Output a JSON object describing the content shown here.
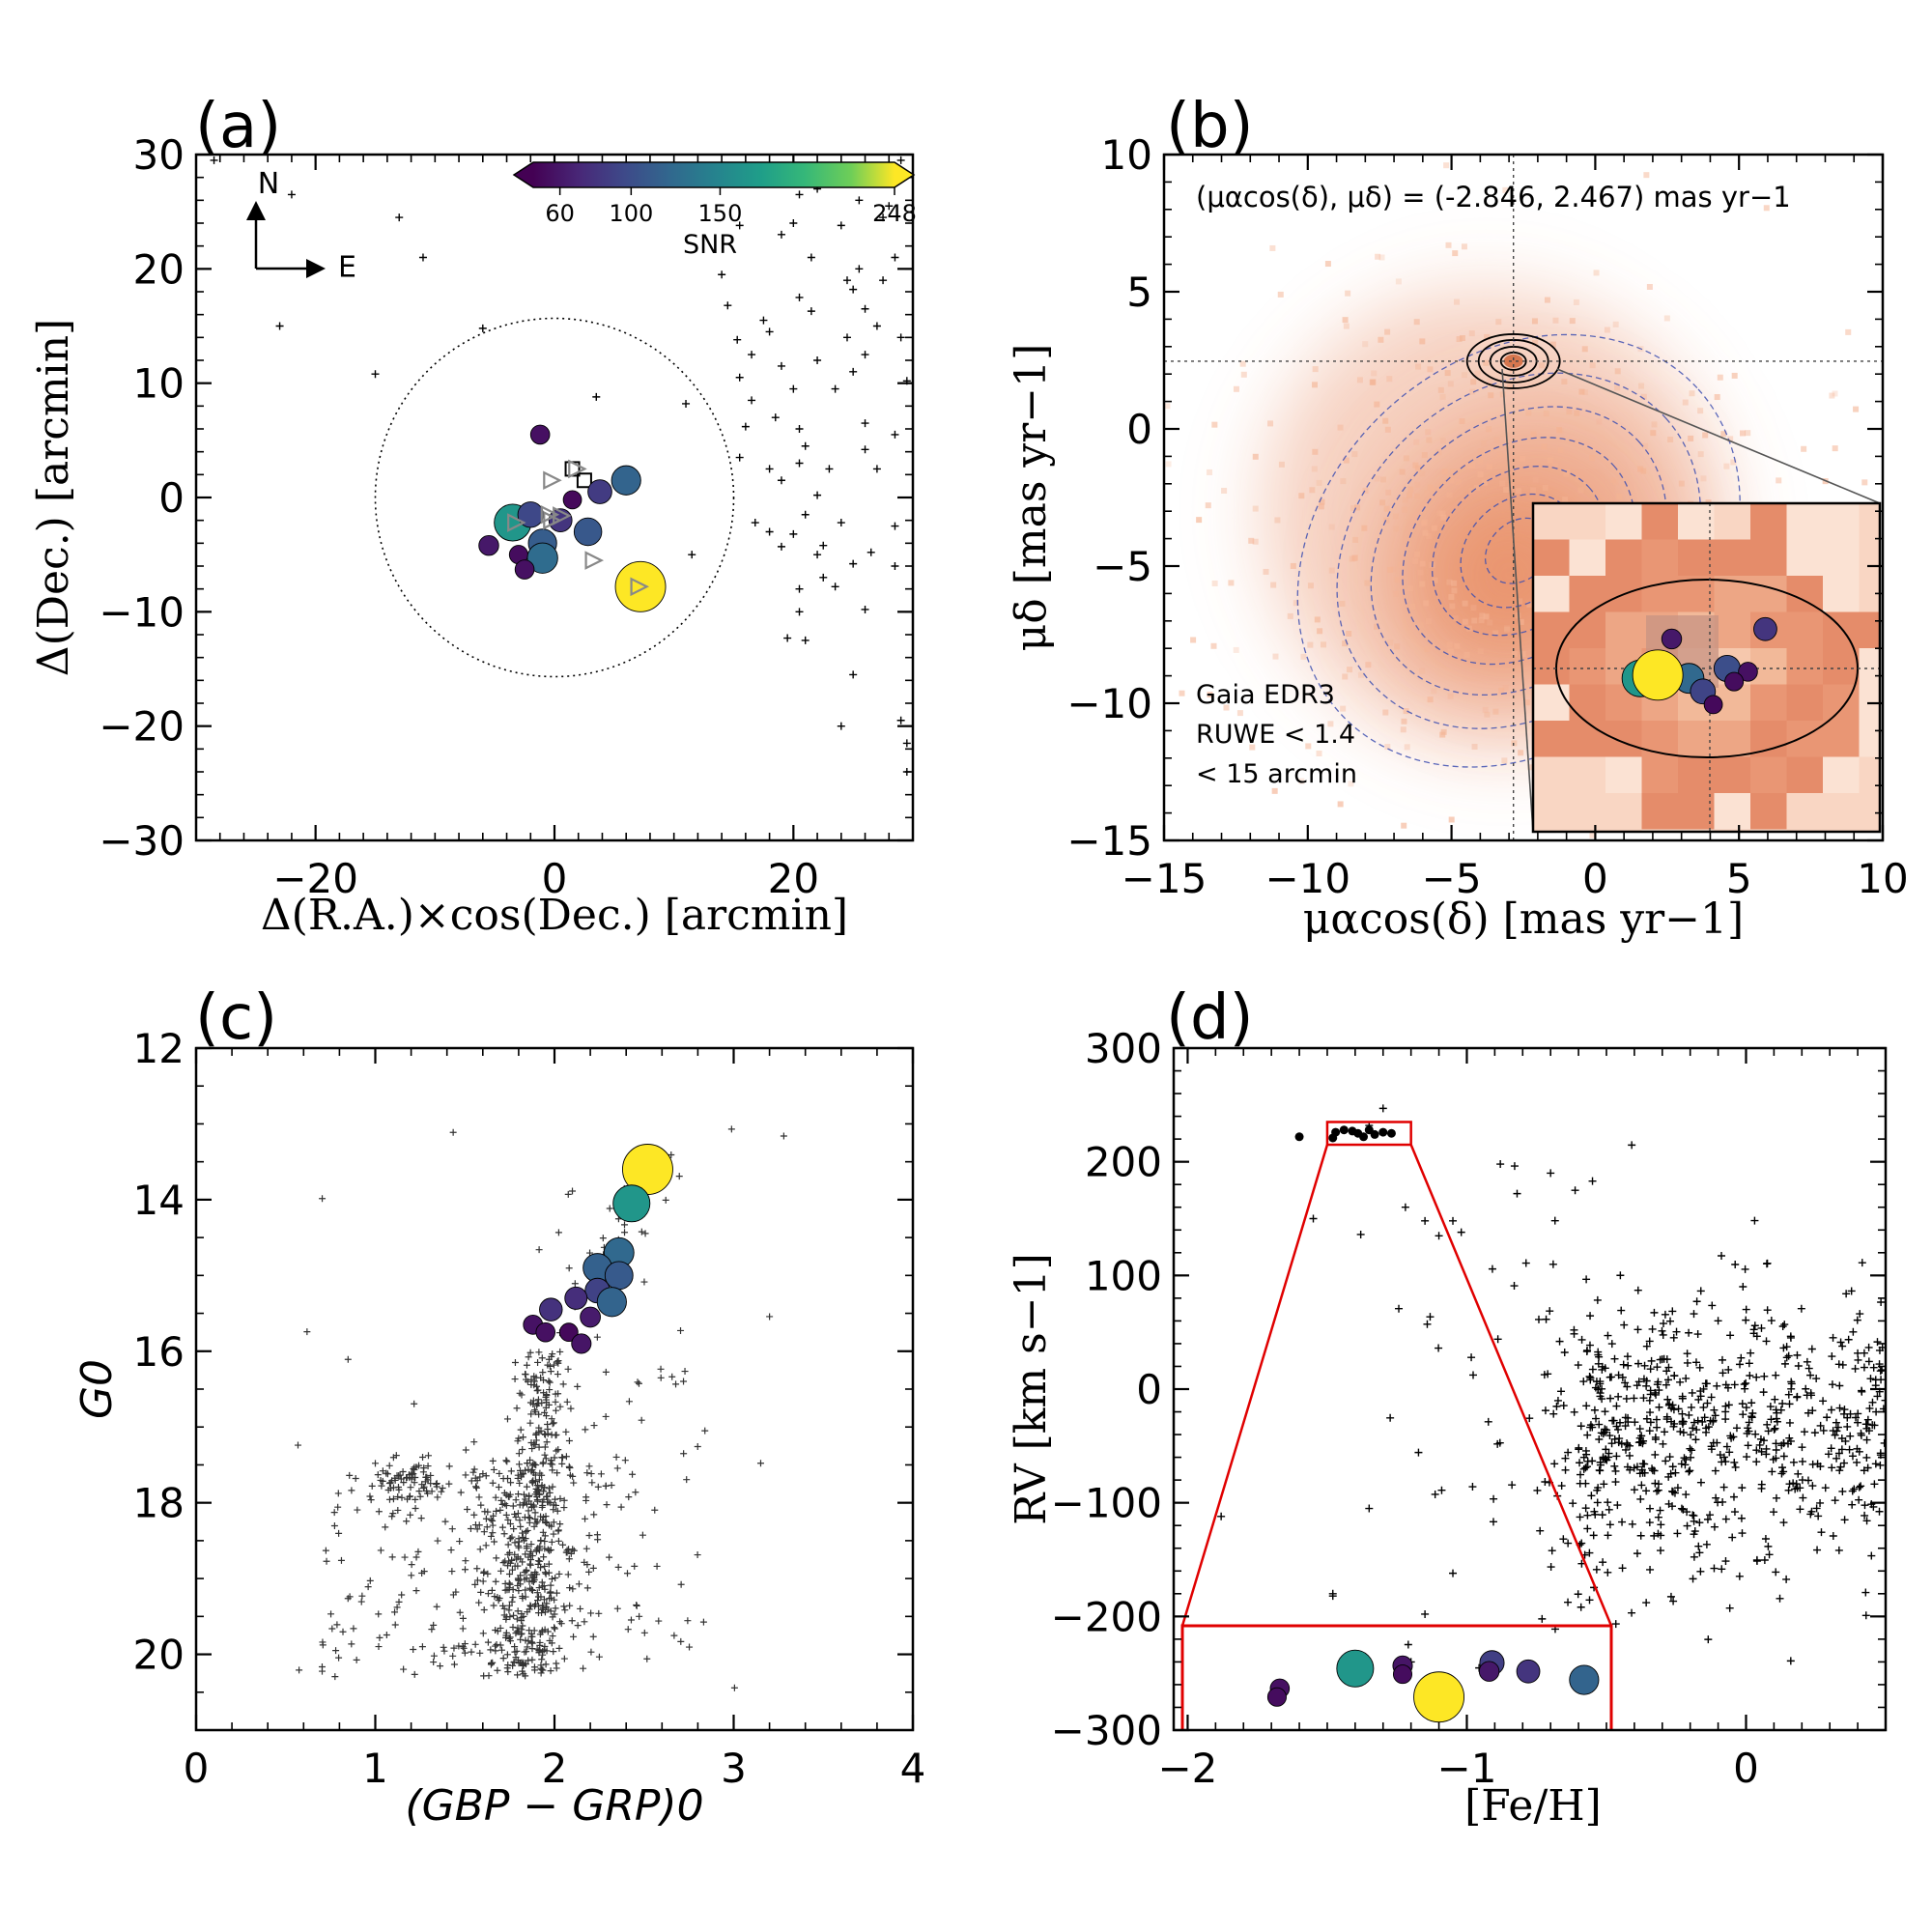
{
  "chart_data": [
    {
      "panel": "(a)",
      "type": "scatter",
      "xlabel": "Δ(R.A.)×cos(Dec.) [arcmin]",
      "ylabel": "Δ(Dec.) [arcmin]",
      "xlim": [
        -30,
        30
      ],
      "ylim": [
        -30,
        30
      ],
      "xticks": [
        "−20",
        "0",
        "20"
      ],
      "yticks": [
        "30",
        "20",
        "10",
        "0",
        "−10",
        "−20",
        "−30"
      ],
      "compass": {
        "north": "N",
        "east": "E"
      },
      "circle_radius_arcmin": 15,
      "colorbar": {
        "label": "SNR",
        "tick_labels": [
          "60",
          "100",
          "150",
          "248"
        ],
        "ticks": [
          60,
          100,
          150,
          248
        ],
        "min": 45,
        "max": 248
      },
      "members": [
        {
          "x": -1.2,
          "y": 5.5,
          "snr": 55
        },
        {
          "x": 6.0,
          "y": 1.5,
          "snr": 118
        },
        {
          "x": -3.5,
          "y": -2.2,
          "snr": 165
        },
        {
          "x": -2.0,
          "y": -1.5,
          "snr": 95
        },
        {
          "x": 1.5,
          "y": -0.2,
          "snr": 50
        },
        {
          "x": 3.8,
          "y": 0.5,
          "snr": 85
        },
        {
          "x": 0.5,
          "y": -2.0,
          "snr": 80
        },
        {
          "x": 2.8,
          "y": -3.0,
          "snr": 108
        },
        {
          "x": -1.0,
          "y": -4.0,
          "snr": 112
        },
        {
          "x": -5.5,
          "y": -4.2,
          "snr": 60
        },
        {
          "x": -3.0,
          "y": -5.0,
          "snr": 52
        },
        {
          "x": -1.0,
          "y": -5.3,
          "snr": 125
        },
        {
          "x": -2.5,
          "y": -6.3,
          "snr": 55
        },
        {
          "x": 7.2,
          "y": -7.8,
          "snr": 248
        }
      ],
      "triangles": [
        [
          -0.3,
          1.5
        ],
        [
          1.8,
          2.5
        ],
        [
          -0.5,
          -1.5
        ],
        [
          0.5,
          -1.6
        ],
        [
          -0.3,
          -2.0
        ],
        [
          3.2,
          -5.5
        ],
        [
          7.0,
          -7.8
        ],
        [
          -3.3,
          -2.2
        ]
      ],
      "squares": [
        [
          1.5,
          2.5
        ],
        [
          2.5,
          1.5
        ]
      ],
      "field": [
        [
          -28.5,
          29.5
        ],
        [
          -22,
          26.5
        ],
        [
          -13,
          24.5
        ],
        [
          -11,
          21
        ],
        [
          -23,
          15
        ],
        [
          -15,
          10.8
        ],
        [
          -6,
          14.8
        ],
        [
          3.5,
          8.8
        ],
        [
          11,
          8.2
        ],
        [
          11.5,
          -5
        ],
        [
          13.2,
          28
        ],
        [
          14,
          19.5
        ],
        [
          15.5,
          23.8
        ],
        [
          19,
          23
        ],
        [
          20,
          24
        ],
        [
          20.5,
          26.5
        ],
        [
          21.5,
          21
        ],
        [
          22,
          27
        ],
        [
          24,
          23.8
        ],
        [
          25.5,
          26
        ],
        [
          26,
          28.2
        ],
        [
          27.5,
          24.5
        ],
        [
          28,
          25.5
        ],
        [
          29,
          29.5
        ],
        [
          24.5,
          19
        ],
        [
          25,
          18.2
        ],
        [
          25.5,
          20
        ],
        [
          26,
          16.5
        ],
        [
          27,
          15
        ],
        [
          27.5,
          19
        ],
        [
          28.5,
          21
        ],
        [
          24.5,
          14
        ],
        [
          26,
          12.5
        ],
        [
          25,
          11
        ],
        [
          23.5,
          9.5
        ],
        [
          26,
          6.5
        ],
        [
          26,
          4.2
        ],
        [
          27,
          2.5
        ],
        [
          29,
          14
        ],
        [
          29.5,
          10.2
        ],
        [
          28.5,
          5.5
        ],
        [
          14.5,
          16.8
        ],
        [
          15.3,
          13.8
        ],
        [
          16.5,
          12.5
        ],
        [
          15.5,
          10.5
        ],
        [
          16.5,
          8.5
        ],
        [
          17.5,
          15.5
        ],
        [
          18,
          14.5
        ],
        [
          19,
          11.5
        ],
        [
          20.5,
          17.5
        ],
        [
          21.5,
          16.3
        ],
        [
          20,
          9.5
        ],
        [
          22,
          12
        ],
        [
          18.5,
          7
        ],
        [
          20.5,
          6
        ],
        [
          16,
          6.2
        ],
        [
          15.5,
          3.5
        ],
        [
          18,
          2.5
        ],
        [
          19,
          1.5
        ],
        [
          20.5,
          3
        ],
        [
          21,
          4.5
        ],
        [
          22,
          0.2
        ],
        [
          23,
          2.5
        ],
        [
          16.8,
          -2.2
        ],
        [
          18,
          -3
        ],
        [
          21,
          -1.5
        ],
        [
          20,
          -3.2
        ],
        [
          24,
          -2.2
        ],
        [
          19,
          -4.3
        ],
        [
          22.5,
          -4.2
        ],
        [
          22,
          -5
        ],
        [
          22.5,
          -7
        ],
        [
          23.5,
          -7.8
        ],
        [
          20.5,
          -8
        ],
        [
          25,
          -5.8
        ],
        [
          26.5,
          -4.8
        ],
        [
          26,
          -9.8
        ],
        [
          28.5,
          -2.5
        ],
        [
          28.5,
          -6
        ],
        [
          20.5,
          -10
        ],
        [
          21,
          -12.5
        ],
        [
          19.5,
          -12.3
        ],
        [
          25,
          -15.5
        ],
        [
          24,
          -20
        ],
        [
          29,
          -19.5
        ],
        [
          29.5,
          -21.5
        ],
        [
          29.5,
          -24
        ]
      ]
    },
    {
      "panel": "(b)",
      "type": "heatmap",
      "xlabel": "μαcos(δ) [mas yr−1]",
      "ylabel": "μδ [mas yr−1]",
      "xlim": [
        -15,
        10
      ],
      "ylim": [
        -15,
        10
      ],
      "xticks": [
        "−15",
        "−10",
        "−5",
        "0",
        "5",
        "10"
      ],
      "yticks": [
        "10",
        "5",
        "0",
        "−5",
        "−10",
        "−15"
      ],
      "annotation": "(μαcos(δ), μδ) = (-2.846, 2.467) mas yr−1",
      "cluster_pm": [
        -2.846,
        2.467
      ],
      "field_peak_pm": [
        -3.5,
        -5.5
      ],
      "legend_lines": [
        "Gaia EDR3",
        "RUWE < 1.4",
        "< 15 arcmin"
      ],
      "inset_members": [
        {
          "dx": -0.11,
          "dy": 0.09,
          "snr": 60
        },
        {
          "dx": 0.16,
          "dy": 0.12,
          "snr": 80
        },
        {
          "dx": -0.2,
          "dy": -0.03,
          "snr": 165
        },
        {
          "dx": -0.06,
          "dy": -0.03,
          "snr": 122
        },
        {
          "dx": 0.05,
          "dy": 0.0,
          "snr": 100
        },
        {
          "dx": 0.11,
          "dy": -0.01,
          "snr": 55
        },
        {
          "dx": 0.07,
          "dy": -0.04,
          "snr": 52
        },
        {
          "dx": -0.02,
          "dy": -0.07,
          "snr": 92
        },
        {
          "dx": 0.01,
          "dy": -0.11,
          "snr": 50
        },
        {
          "dx": -0.15,
          "dy": -0.02,
          "snr": 248
        }
      ]
    },
    {
      "panel": "(c)",
      "type": "scatter",
      "xlabel": "(GBP − GRP)0",
      "ylabel": "G0",
      "xlim": [
        0,
        4
      ],
      "ylim": [
        21,
        12
      ],
      "xticks": [
        "0",
        "1",
        "2",
        "3",
        "4"
      ],
      "yticks": [
        "12",
        "14",
        "16",
        "18",
        "20"
      ],
      "members": [
        {
          "x": 2.52,
          "y": 13.6,
          "snr": 248
        },
        {
          "x": 2.43,
          "y": 14.05,
          "snr": 165
        },
        {
          "x": 2.36,
          "y": 14.7,
          "snr": 122
        },
        {
          "x": 2.24,
          "y": 14.9,
          "snr": 115
        },
        {
          "x": 2.36,
          "y": 15.0,
          "snr": 110
        },
        {
          "x": 2.24,
          "y": 15.2,
          "snr": 90
        },
        {
          "x": 2.32,
          "y": 15.35,
          "snr": 118
        },
        {
          "x": 2.12,
          "y": 15.3,
          "snr": 75
        },
        {
          "x": 1.98,
          "y": 15.45,
          "snr": 78
        },
        {
          "x": 2.2,
          "y": 15.55,
          "snr": 62
        },
        {
          "x": 1.88,
          "y": 15.65,
          "snr": 56
        },
        {
          "x": 1.95,
          "y": 15.75,
          "snr": 55
        },
        {
          "x": 2.08,
          "y": 15.75,
          "snr": 50
        },
        {
          "x": 2.15,
          "y": 15.9,
          "snr": 58
        }
      ]
    },
    {
      "panel": "(d)",
      "type": "scatter",
      "xlabel": "[Fe/H]",
      "ylabel": "RV [km s−1]",
      "xlim": [
        -2.05,
        0.5
      ],
      "ylim": [
        -300,
        300
      ],
      "xticks": [
        "−2",
        "−1",
        "0"
      ],
      "yticks": [
        "300",
        "200",
        "100",
        "0",
        "−100",
        "−200",
        "−300"
      ],
      "member_dots": [
        [
          -1.6,
          222
        ],
        [
          -1.48,
          221
        ],
        [
          -1.47,
          226
        ],
        [
          -1.44,
          228
        ],
        [
          -1.41,
          227
        ],
        [
          -1.39,
          225
        ],
        [
          -1.37,
          222
        ],
        [
          -1.35,
          228
        ],
        [
          -1.33,
          224
        ],
        [
          -1.3,
          226
        ],
        [
          -1.27,
          225
        ]
      ],
      "zoom_box_data": {
        "x": [
          -1.5,
          -1.2
        ],
        "y": [
          215,
          235
        ]
      },
      "zoom_members": [
        {
          "x": -1.67,
          "y": 224.0,
          "snr": 55
        },
        {
          "x": -1.68,
          "y": 222.5,
          "snr": 52
        },
        {
          "x": -1.4,
          "y": 227.5,
          "snr": 165
        },
        {
          "x": -1.23,
          "y": 228.0,
          "snr": 58
        },
        {
          "x": -1.23,
          "y": 226.5,
          "snr": 52
        },
        {
          "x": -1.1,
          "y": 222.5,
          "snr": 248
        },
        {
          "x": -0.91,
          "y": 228.5,
          "snr": 88
        },
        {
          "x": -0.92,
          "y": 227.0,
          "snr": 60
        },
        {
          "x": -0.78,
          "y": 227.0,
          "snr": 80
        },
        {
          "x": -0.58,
          "y": 225.5,
          "snr": 118
        }
      ]
    }
  ]
}
